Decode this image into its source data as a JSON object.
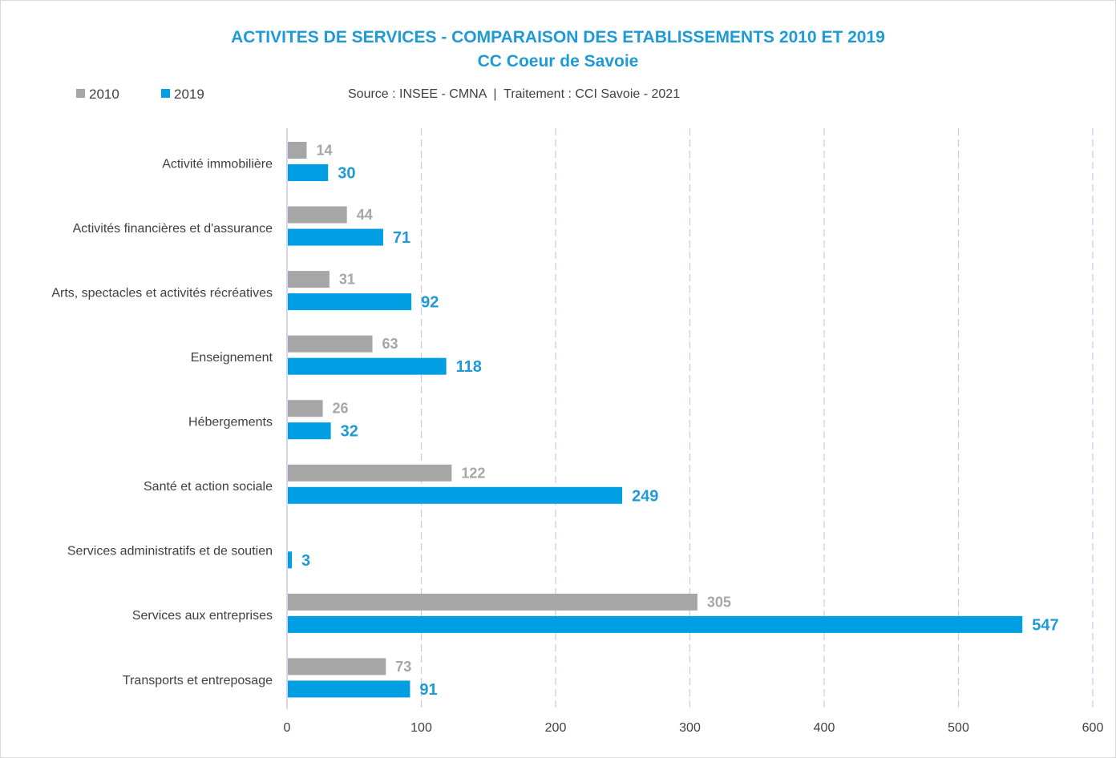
{
  "title": "ACTIVITES DE SERVICES - COMPARAISON DES ETABLISSEMENTS 2010 ET 2019",
  "subtitle": "CC Coeur de Savoie",
  "source": "Source : INSEE - CMNA  |  Traitement : CCI Savoie - 2021",
  "colors": {
    "series_2010": "#a6a6a6",
    "series_2019": "#009fe3",
    "title": "#1e9bd7",
    "gridline": "#c7c7f0"
  },
  "legend": [
    {
      "label": "2010",
      "color": "#a6a6a6"
    },
    {
      "label": "2019",
      "color": "#009fe3"
    }
  ],
  "chart_data": {
    "type": "bar",
    "orientation": "horizontal",
    "title": "ACTIVITES DE SERVICES - COMPARAISON DES ETABLISSEMENTS 2010 ET 2019",
    "subtitle": "CC Coeur de Savoie",
    "categories": [
      "Activité immobilière",
      "Activités financières et d'assurance",
      "Arts, spectacles et activités récréatives",
      "Enseignement",
      "Hébergements",
      "Santé et action sociale",
      "Services administratifs et de soutien",
      "Services aux entreprises",
      "Transports et entreposage"
    ],
    "series": [
      {
        "name": "2010",
        "values": [
          14,
          44,
          31,
          63,
          26,
          122,
          null,
          305,
          73
        ]
      },
      {
        "name": "2019",
        "values": [
          30,
          71,
          92,
          118,
          32,
          249,
          3,
          547,
          91
        ]
      }
    ],
    "xlim": [
      0,
      600
    ],
    "xticks": [
      0,
      100,
      200,
      300,
      400,
      500,
      600
    ],
    "grid": "vertical dashed",
    "legend_position": "top-left"
  }
}
